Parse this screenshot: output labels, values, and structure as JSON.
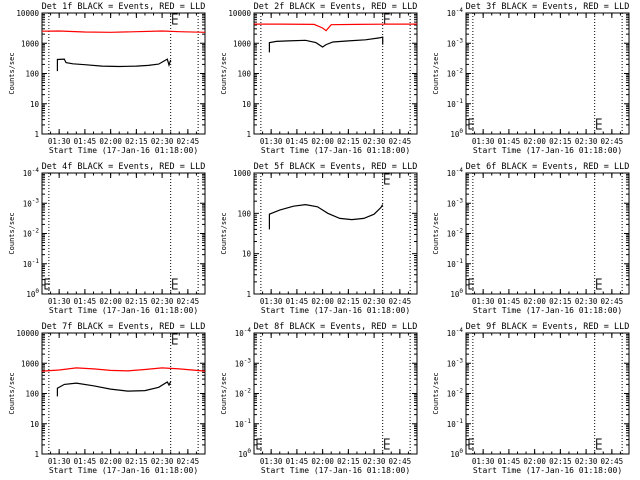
{
  "chart_data": [
    {
      "type": "line",
      "title": "Det 1f BLACK = Events, RED = LLD",
      "ylabel": "Counts/sec",
      "xlabel": "Start Time (17-Jan-16 01:18:00)",
      "y_scale": "log",
      "ylim": [
        1,
        10000
      ],
      "y_ticks": [
        "1",
        "10",
        "100",
        "1000",
        "10000"
      ],
      "xlim": [
        "01:20",
        "02:55"
      ],
      "x_ticks": [
        "01:30",
        "01:45",
        "02:00",
        "02:15",
        "02:30",
        "02:45"
      ],
      "vlines": [
        "01:24",
        "02:35",
        "02:51"
      ],
      "series": [
        {
          "color": "#000000",
          "x": [
            "01:29",
            "01:29",
            "01:33",
            "01:34",
            "01:38",
            "01:45",
            "01:55",
            "02:05",
            "02:15",
            "02:22",
            "02:28",
            "02:33",
            "02:34",
            "02:35"
          ],
          "y": [
            120,
            290,
            300,
            230,
            210,
            195,
            175,
            170,
            175,
            185,
            205,
            300,
            190,
            280
          ]
        },
        {
          "color": "#ff0000",
          "x": [
            "01:20",
            "01:30",
            "01:45",
            "02:00",
            "02:15",
            "02:30",
            "02:40",
            "02:55"
          ],
          "y": [
            2500,
            2550,
            2350,
            2300,
            2400,
            2550,
            2400,
            2300
          ]
        }
      ]
    },
    {
      "type": "line",
      "title": "Det 2f BLACK = Events, RED = LLD",
      "ylabel": "Counts/sec",
      "xlabel": "Start Time (17-Jan-16 01:18:00)",
      "y_scale": "log",
      "ylim": [
        1,
        10000
      ],
      "y_ticks": [
        "1",
        "10",
        "100",
        "1000",
        "10000"
      ],
      "xlim": [
        "01:20",
        "02:55"
      ],
      "x_ticks": [
        "01:30",
        "01:45",
        "02:00",
        "02:15",
        "02:30",
        "02:45"
      ],
      "vlines": [
        "01:24",
        "02:35",
        "02:51"
      ],
      "series": [
        {
          "color": "#000000",
          "x": [
            "01:29",
            "01:29",
            "01:33",
            "01:40",
            "01:50",
            "01:56",
            "02:00",
            "02:02",
            "02:06",
            "02:15",
            "02:25",
            "02:33",
            "02:35",
            "02:35"
          ],
          "y": [
            500,
            1050,
            1150,
            1200,
            1250,
            1050,
            750,
            900,
            1100,
            1200,
            1300,
            1500,
            1600,
            900
          ]
        },
        {
          "color": "#ff0000",
          "x": [
            "01:20",
            "01:35",
            "01:55",
            "02:00",
            "02:02",
            "02:05",
            "02:20",
            "02:40",
            "02:55"
          ],
          "y": [
            4300,
            4300,
            4200,
            3200,
            2600,
            4100,
            4200,
            4300,
            4300
          ]
        }
      ]
    },
    {
      "type": "line",
      "title": "Det 3f BLACK = Events, RED = LLD",
      "ylabel": "Counts/sec",
      "xlabel": "Start Time (17-Jan-16 01:18:00)",
      "y_scale": "log",
      "ylim": [
        1,
        0.0001
      ],
      "y_ticks": [
        "10^0",
        "10^-1",
        "10^-2",
        "10^-3",
        "10^-4"
      ],
      "xlim": [
        "01:20",
        "02:55"
      ],
      "x_ticks": [
        "01:30",
        "01:45",
        "02:00",
        "02:15",
        "02:30",
        "02:45"
      ],
      "vlines": [
        "01:24",
        "02:35",
        "02:51"
      ],
      "series": []
    },
    {
      "type": "line",
      "title": "Det 4f BLACK = Events, RED = LLD",
      "ylabel": "Counts/sec",
      "xlabel": "Start Time (17-Jan-16 01:18:00)",
      "y_scale": "log",
      "ylim": [
        1,
        0.0001
      ],
      "y_ticks": [
        "10^0",
        "10^-1",
        "10^-2",
        "10^-3",
        "10^-4"
      ],
      "xlim": [
        "01:20",
        "02:55"
      ],
      "x_ticks": [
        "01:30",
        "01:45",
        "02:00",
        "02:15",
        "02:30",
        "02:45"
      ],
      "vlines": [
        "01:24",
        "02:35",
        "02:51"
      ],
      "series": []
    },
    {
      "type": "line",
      "title": "Det 5f BLACK = Events, RED = LLD",
      "ylabel": "Counts/sec",
      "xlabel": "Start Time (17-Jan-16 01:18:00)",
      "y_scale": "log",
      "ylim": [
        1,
        1000
      ],
      "y_ticks": [
        "1",
        "10",
        "100",
        "1000"
      ],
      "xlim": [
        "01:20",
        "02:55"
      ],
      "x_ticks": [
        "01:30",
        "01:45",
        "02:00",
        "02:15",
        "02:30",
        "02:45"
      ],
      "vlines": [
        "01:24",
        "02:35",
        "02:51"
      ],
      "series": [
        {
          "color": "#000000",
          "x": [
            "01:29",
            "01:29",
            "01:35",
            "01:43",
            "01:50",
            "01:57",
            "02:03",
            "02:10",
            "02:17",
            "02:24",
            "02:30",
            "02:34",
            "02:35"
          ],
          "y": [
            40,
            95,
            120,
            150,
            165,
            145,
            100,
            75,
            70,
            75,
            95,
            140,
            165
          ]
        }
      ]
    },
    {
      "type": "line",
      "title": "Det 6f BLACK = Events, RED = LLD",
      "ylabel": "Counts/sec",
      "xlabel": "Start Time (17-Jan-16 01:18:00)",
      "y_scale": "log",
      "ylim": [
        1,
        0.0001
      ],
      "y_ticks": [
        "10^0",
        "10^-1",
        "10^-2",
        "10^-3",
        "10^-4"
      ],
      "xlim": [
        "01:20",
        "02:55"
      ],
      "x_ticks": [
        "01:30",
        "01:45",
        "02:00",
        "02:15",
        "02:30",
        "02:45"
      ],
      "vlines": [
        "01:24",
        "02:35",
        "02:51"
      ],
      "series": []
    },
    {
      "type": "line",
      "title": "Det 7f BLACK = Events, RED = LLD",
      "ylabel": "Counts/sec",
      "xlabel": "Start Time (17-Jan-16 01:18:00)",
      "y_scale": "log",
      "ylim": [
        1,
        10000
      ],
      "y_ticks": [
        "1",
        "10",
        "100",
        "1000",
        "10000"
      ],
      "xlim": [
        "01:20",
        "02:55"
      ],
      "x_ticks": [
        "01:30",
        "01:45",
        "02:00",
        "02:15",
        "02:30",
        "02:45"
      ],
      "vlines": [
        "01:24",
        "02:35",
        "02:51"
      ],
      "series": [
        {
          "color": "#000000",
          "x": [
            "01:29",
            "01:29",
            "01:33",
            "01:40",
            "01:50",
            "02:00",
            "02:10",
            "02:20",
            "02:28",
            "02:33",
            "02:34",
            "02:35"
          ],
          "y": [
            80,
            150,
            200,
            220,
            180,
            140,
            120,
            125,
            160,
            240,
            190,
            250
          ]
        },
        {
          "color": "#ff0000",
          "x": [
            "01:20",
            "01:30",
            "01:40",
            "01:50",
            "02:00",
            "02:10",
            "02:20",
            "02:30",
            "02:40",
            "02:55"
          ],
          "y": [
            550,
            600,
            700,
            650,
            580,
            560,
            620,
            700,
            650,
            550
          ]
        }
      ]
    },
    {
      "type": "line",
      "title": "Det 8f BLACK = Events, RED = LLD",
      "ylabel": "Counts/sec",
      "xlabel": "Start Time (17-Jan-16 01:18:00)",
      "y_scale": "log",
      "ylim": [
        1,
        0.0001
      ],
      "y_ticks": [
        "10^0",
        "10^-1",
        "10^-2",
        "10^-3",
        "10^-4"
      ],
      "xlim": [
        "01:20",
        "02:55"
      ],
      "x_ticks": [
        "01:30",
        "01:45",
        "02:00",
        "02:15",
        "02:30",
        "02:45"
      ],
      "vlines": [
        "01:24",
        "02:35",
        "02:51"
      ],
      "series": []
    },
    {
      "type": "line",
      "title": "Det 9f BLACK = Events, RED = LLD",
      "ylabel": "Counts/sec",
      "xlabel": "Start Time (17-Jan-16 01:18:00)",
      "y_scale": "log",
      "ylim": [
        1,
        0.0001
      ],
      "y_ticks": [
        "10^0",
        "10^-1",
        "10^-2",
        "10^-3",
        "10^-4"
      ],
      "xlim": [
        "01:20",
        "02:55"
      ],
      "x_ticks": [
        "01:30",
        "01:45",
        "02:00",
        "02:15",
        "02:30",
        "02:45"
      ],
      "vlines": [
        "01:24",
        "02:35",
        "02:51"
      ],
      "series": []
    }
  ]
}
